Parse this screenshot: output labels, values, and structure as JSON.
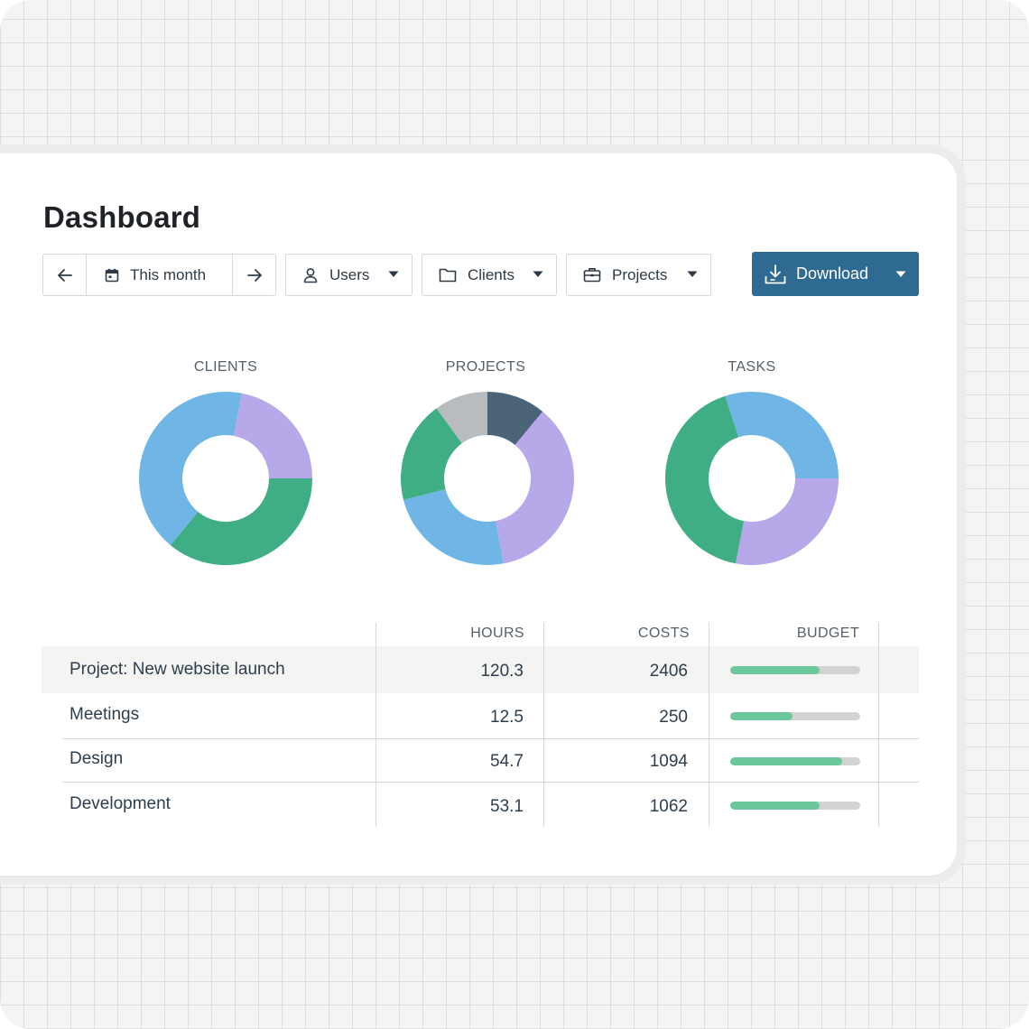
{
  "page": {
    "title": "Dashboard"
  },
  "toolbar": {
    "prev_icon": "arrow-left-icon",
    "date_icon": "calendar-icon",
    "date_label": "This month",
    "next_icon": "arrow-right-icon",
    "users_label": "Users",
    "clients_label": "Clients",
    "projects_label": "Projects",
    "download_label": "Download"
  },
  "colors": {
    "accent": "#2f6a93",
    "bar_fill": "#6bc89c",
    "bar_track": "#d3d3d3",
    "blue": "#6fb6e6",
    "green": "#3fae84",
    "lavender": "#b7a8ea",
    "gray": "#b9bcbf",
    "slate": "#4c6478"
  },
  "charts": [
    {
      "title": "CLIENTS",
      "slices": [
        {
          "value": 0.36,
          "color": "green"
        },
        {
          "value": 0.42,
          "color": "blue"
        },
        {
          "value": 0.22,
          "color": "lavender"
        }
      ],
      "start": 0.25
    },
    {
      "title": "PROJECTS",
      "slices": [
        {
          "value": 0.11,
          "color": "slate"
        },
        {
          "value": 0.36,
          "color": "lavender"
        },
        {
          "value": 0.24,
          "color": "blue"
        },
        {
          "value": 0.19,
          "color": "green"
        },
        {
          "value": 0.1,
          "color": "gray"
        }
      ],
      "start": 0.0
    },
    {
      "title": "TASKS",
      "slices": [
        {
          "value": 0.3,
          "color": "blue"
        },
        {
          "value": 0.28,
          "color": "lavender"
        },
        {
          "value": 0.42,
          "color": "green"
        }
      ],
      "start": -0.05
    }
  ],
  "table": {
    "columns": [
      "HOURS",
      "COSTS",
      "BUDGET"
    ],
    "rows": [
      {
        "name": "Project: New website launch",
        "hours": "120.3",
        "costs": "2406",
        "budget": 0.69
      },
      {
        "name": "Meetings",
        "hours": "12.5",
        "costs": "250",
        "budget": 0.48
      },
      {
        "name": "Design",
        "hours": "54.7",
        "costs": "1094",
        "budget": 0.86
      },
      {
        "name": "Development",
        "hours": "53.1",
        "costs": "1062",
        "budget": 0.69
      }
    ]
  }
}
